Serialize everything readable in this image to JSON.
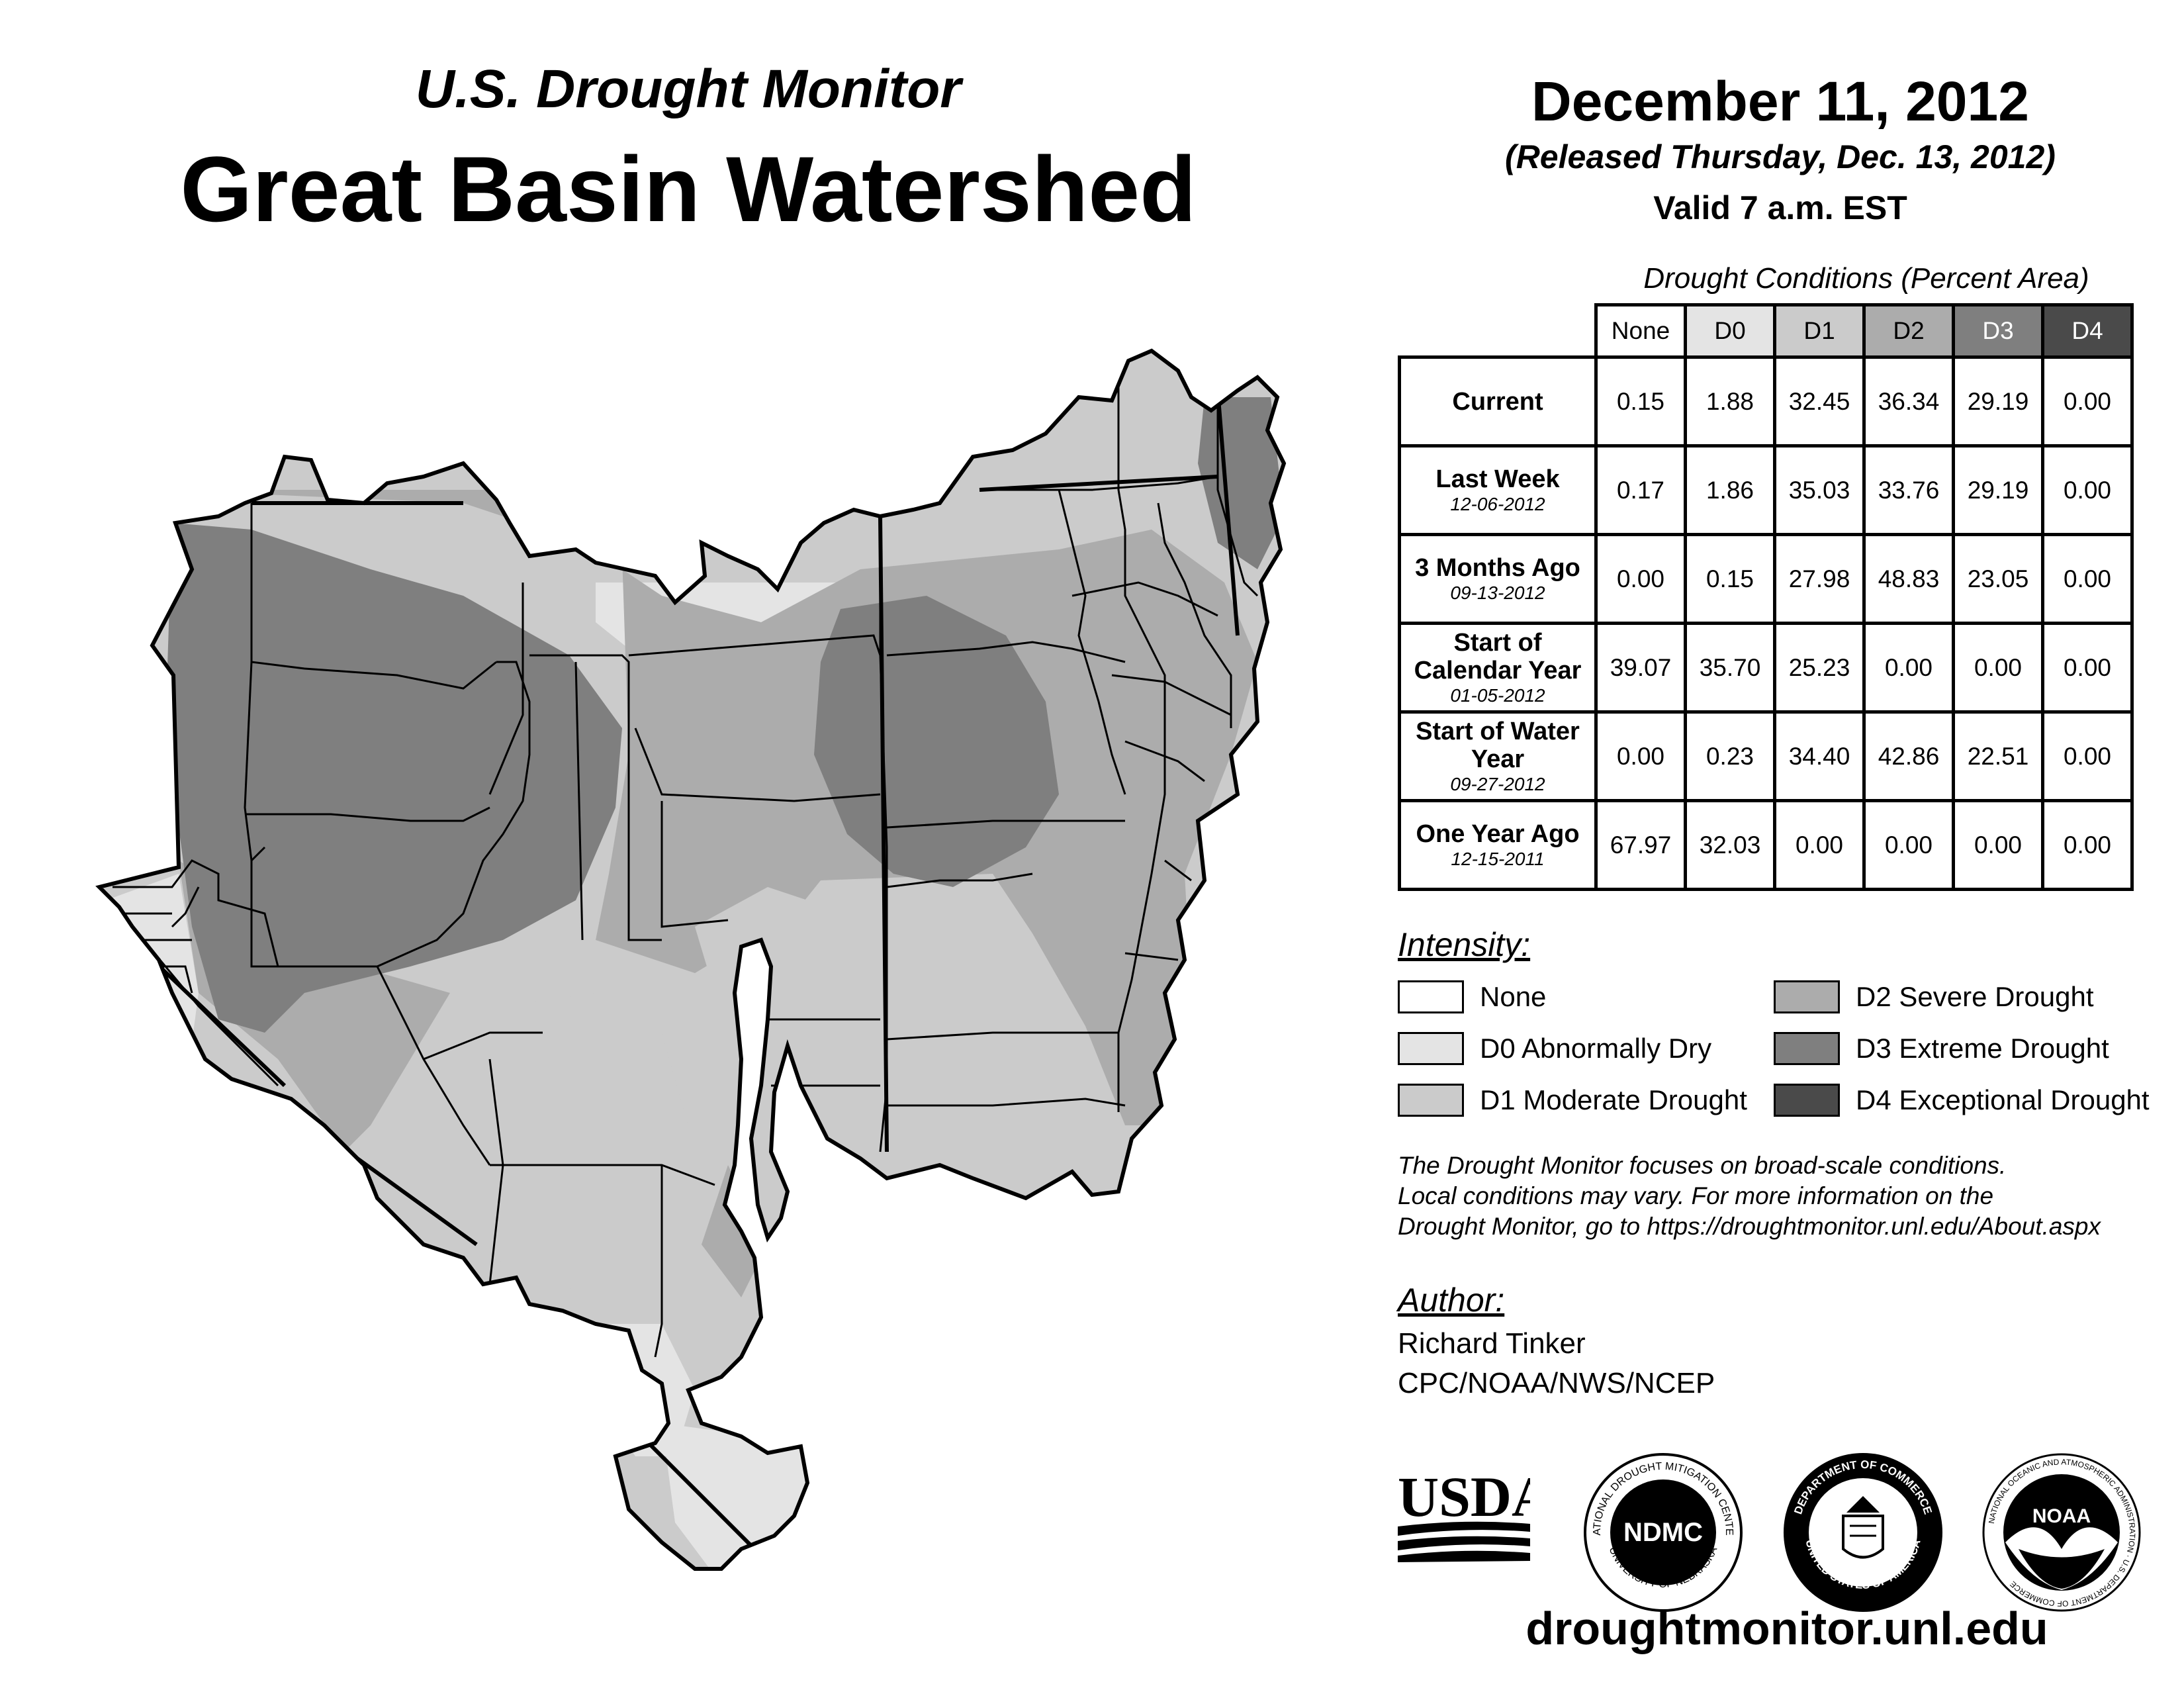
{
  "header": {
    "subtitle": "U.S. Drought Monitor",
    "title": "Great Basin Watershed",
    "date": "December 11, 2012",
    "released": "(Released Thursday, Dec. 13, 2012)",
    "valid": "Valid 7 a.m. EST"
  },
  "table": {
    "caption": "Drought Conditions (Percent Area)",
    "columns": [
      "None",
      "D0",
      "D1",
      "D2",
      "D3",
      "D4"
    ],
    "rows": [
      {
        "label": "Current",
        "date": "",
        "values": [
          "0.15",
          "1.88",
          "32.45",
          "36.34",
          "29.19",
          "0.00"
        ]
      },
      {
        "label": "Last Week",
        "date": "12-06-2012",
        "values": [
          "0.17",
          "1.86",
          "35.03",
          "33.76",
          "29.19",
          "0.00"
        ]
      },
      {
        "label": "3 Months Ago",
        "date": "09-13-2012",
        "values": [
          "0.00",
          "0.15",
          "27.98",
          "48.83",
          "23.05",
          "0.00"
        ]
      },
      {
        "label": "Start of Calendar Year",
        "date": "01-05-2012",
        "values": [
          "39.07",
          "35.70",
          "25.23",
          "0.00",
          "0.00",
          "0.00"
        ]
      },
      {
        "label": "Start of Water Year",
        "date": "09-27-2012",
        "values": [
          "0.00",
          "0.23",
          "34.40",
          "42.86",
          "22.51",
          "0.00"
        ]
      },
      {
        "label": "One Year Ago",
        "date": "12-15-2011",
        "values": [
          "67.97",
          "32.03",
          "0.00",
          "0.00",
          "0.00",
          "0.00"
        ]
      }
    ]
  },
  "legend": {
    "heading": "Intensity:",
    "items": [
      {
        "label": "None",
        "color": "#ffffff"
      },
      {
        "label": "D0 Abnormally Dry",
        "color": "#e4e4e4"
      },
      {
        "label": "D1 Moderate Drought",
        "color": "#cbcbcb"
      },
      {
        "label": "D2 Severe Drought",
        "color": "#acacac"
      },
      {
        "label": "D3 Extreme Drought",
        "color": "#7f7f7f"
      },
      {
        "label": "D4 Exceptional Drought",
        "color": "#4a4a4a"
      }
    ]
  },
  "note": {
    "line1": "The Drought Monitor focuses on broad-scale conditions.",
    "line2": "Local conditions may vary. For more information on the",
    "line3": "Drought Monitor, go to https://droughtmonitor.unl.edu/About.aspx"
  },
  "author": {
    "heading": "Author:",
    "name": "Richard Tinker",
    "org": "CPC/NOAA/NWS/NCEP"
  },
  "logos": {
    "usda": "USDA",
    "ndmc": "NDMC",
    "ndmc_top": "NATIONAL DROUGHT MITIGATION CENTER",
    "ndmc_bottom": "UNIVERSITY OF NEBRASKA",
    "doc_top": "DEPARTMENT OF COMMERCE",
    "doc_bottom": "UNITED STATES OF AMERICA",
    "noaa": "NOAA",
    "noaa_ring": "NATIONAL OCEANIC AND ATMOSPHERIC ADMINISTRATION · U.S. DEPARTMENT OF COMMERCE"
  },
  "website": "droughtmonitor.unl.edu"
}
